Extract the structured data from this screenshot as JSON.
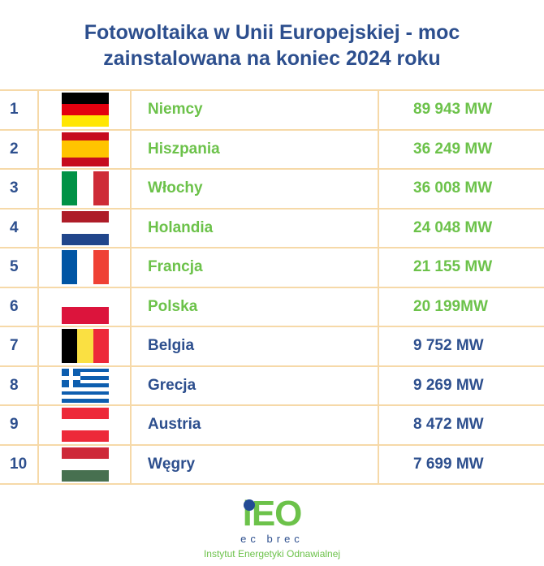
{
  "title_line1": "Fotowoltaika w Unii Europejskiej - moc",
  "title_line2": "zainstalowana na koniec 2024 roku",
  "colors": {
    "top6": "#6cc24a",
    "rest": "#2d4f8e",
    "border": "#f6d9a8"
  },
  "rows": [
    {
      "rank": "1",
      "country": "Niemcy",
      "value": "89 943 MW",
      "flag": {
        "dir": "h",
        "colors": [
          "#000000",
          "#e3000f",
          "#ffe600"
        ]
      }
    },
    {
      "rank": "2",
      "country": "Hiszpania",
      "value": "36 249 MW",
      "flag": {
        "dir": "h",
        "colors": [
          "#c60b1e",
          "#ffc400",
          "#ffc400",
          "#c60b1e"
        ]
      }
    },
    {
      "rank": "3",
      "country": "Włochy",
      "value": "36 008 MW",
      "flag": {
        "dir": "v",
        "colors": [
          "#009246",
          "#ffffff",
          "#ce2b37"
        ]
      }
    },
    {
      "rank": "4",
      "country": "Holandia",
      "value": "24 048 MW",
      "flag": {
        "dir": "h",
        "colors": [
          "#ae1c28",
          "#ffffff",
          "#21468b"
        ]
      }
    },
    {
      "rank": "5",
      "country": "Francja",
      "value": "21 155 MW",
      "flag": {
        "dir": "v",
        "colors": [
          "#0055a4",
          "#ffffff",
          "#ef4135"
        ]
      }
    },
    {
      "rank": "6",
      "country": "Polska",
      "value": "20 199MW",
      "flag": {
        "dir": "h",
        "colors": [
          "#ffffff",
          "#dc143c"
        ]
      }
    },
    {
      "rank": "7",
      "country": "Belgia",
      "value": "9 752 MW",
      "flag": {
        "dir": "v",
        "colors": [
          "#000000",
          "#fae042",
          "#ed2939"
        ]
      }
    },
    {
      "rank": "8",
      "country": "Grecja",
      "value": "9 269 MW",
      "flag": {
        "dir": "h",
        "colors": [
          "#0d5eaf",
          "#ffffff",
          "#0d5eaf",
          "#ffffff",
          "#0d5eaf",
          "#ffffff",
          "#0d5eaf",
          "#ffffff",
          "#0d5eaf"
        ]
      }
    },
    {
      "rank": "9",
      "country": "Austria",
      "value": "8 472 MW",
      "flag": {
        "dir": "h",
        "colors": [
          "#ed2939",
          "#ffffff",
          "#ed2939"
        ]
      }
    },
    {
      "rank": "10",
      "country": "Węgry",
      "value": "7 699 MW",
      "flag": {
        "dir": "h",
        "colors": [
          "#ce2939",
          "#ffffff",
          "#477050"
        ]
      }
    }
  ],
  "logo": {
    "mark": "iEO",
    "subtitle": "ec brec",
    "institute": "Instytut Energetyki Odnawialnej"
  }
}
